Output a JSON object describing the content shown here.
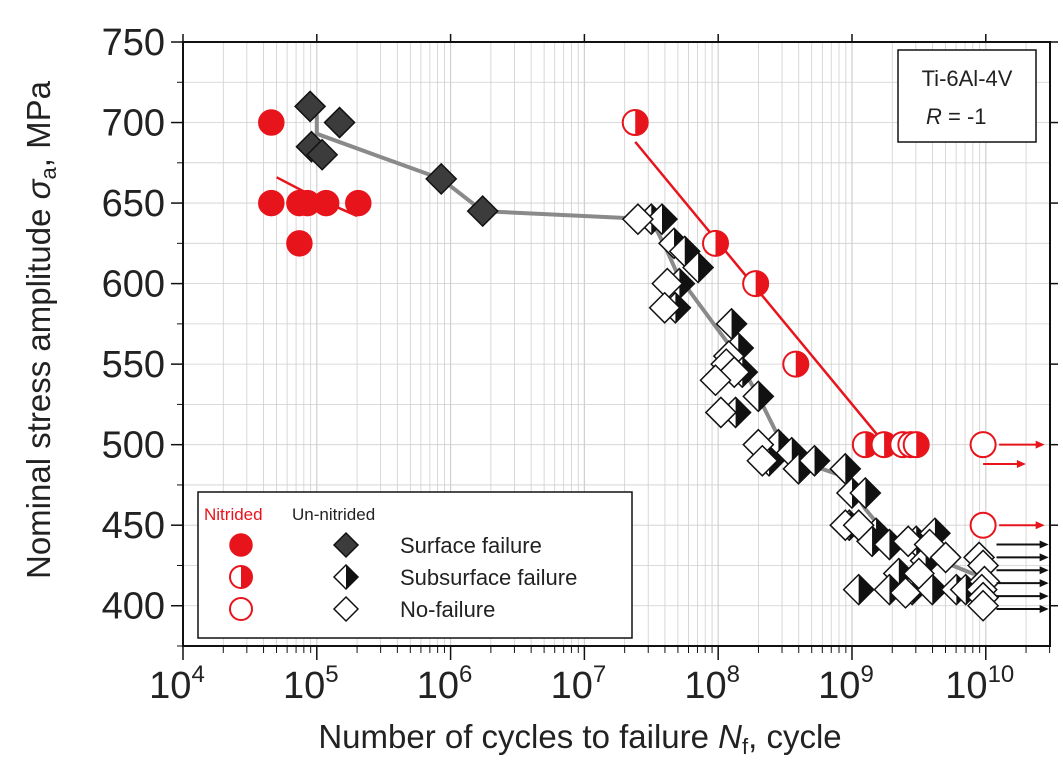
{
  "chart_data": {
    "type": "scatter",
    "title": "",
    "xlabel": "Number of cycles to failure",
    "xlabel_var": "N",
    "xlabel_sub": "f",
    "xlabel_suffix": ", cycle",
    "ylabel": "Nominal stress amplitude",
    "ylabel_var": "σ",
    "ylabel_sub": "a",
    "ylabel_suffix": ", MPa",
    "xscale": "log10",
    "xlim_exp": [
      4,
      10.48
    ],
    "ylim": [
      375,
      750
    ],
    "x_tick_base": "10",
    "x_tick_exponents": [
      "4",
      "5",
      "6",
      "7",
      "8",
      "9",
      "10"
    ],
    "y_ticks": [
      "400",
      "450",
      "500",
      "550",
      "600",
      "650",
      "700",
      "750"
    ],
    "grid": true,
    "annotation": {
      "line1": "Ti-6Al-4V",
      "line2_var": "R",
      "line2_rest": " = -1",
      "placement": "top-right"
    },
    "colors": {
      "nitrided": "#e8141c",
      "unnitrided": "#2b2b2b",
      "fit_nitrided": "#e8141c",
      "fit_unnitrided": "#8a8a8a",
      "grid": "#cfcfcf"
    },
    "legend": {
      "placement": "bottom-left",
      "header_nitrided": "Nitrided",
      "header_unnitrided": "Un-nitrided",
      "rows": [
        "Surface failure",
        "Subsurface failure",
        "No-failure"
      ]
    },
    "series": [
      {
        "name": "Nitrided - Surface failure",
        "group": "nitrided",
        "kind": "surface",
        "points": [
          [
            4.66,
            700
          ],
          [
            4.66,
            650
          ],
          [
            4.87,
            650
          ],
          [
            4.93,
            650
          ],
          [
            5.07,
            650
          ],
          [
            5.31,
            650
          ],
          [
            4.87,
            625
          ]
        ]
      },
      {
        "name": "Nitrided - Subsurface failure",
        "group": "nitrided",
        "kind": "subsurface",
        "points": [
          [
            7.38,
            700
          ],
          [
            7.98,
            625
          ],
          [
            8.28,
            600
          ],
          [
            8.58,
            550
          ],
          [
            9.1,
            500
          ],
          [
            9.24,
            500
          ],
          [
            9.38,
            500
          ],
          [
            9.44,
            500
          ],
          [
            9.48,
            500
          ]
        ]
      },
      {
        "name": "Nitrided - No-failure",
        "group": "nitrided",
        "kind": "nofailure",
        "runout": true,
        "points": [
          [
            9.98,
            500
          ],
          [
            9.98,
            450
          ]
        ]
      },
      {
        "name": "Un-nitrided - Surface failure",
        "group": "unnitrided",
        "kind": "surface",
        "points": [
          [
            4.95,
            710
          ],
          [
            4.96,
            685
          ],
          [
            5.04,
            680
          ],
          [
            5.17,
            700
          ],
          [
            5.93,
            665
          ],
          [
            6.24,
            645
          ]
        ]
      },
      {
        "name": "Un-nitrided - Subsurface failure",
        "group": "unnitrided",
        "kind": "subsurface",
        "points": [
          [
            7.5,
            640
          ],
          [
            7.58,
            640
          ],
          [
            7.67,
            625
          ],
          [
            7.75,
            620
          ],
          [
            7.85,
            610
          ],
          [
            7.71,
            600
          ],
          [
            7.68,
            585
          ],
          [
            8.1,
            575
          ],
          [
            8.15,
            560
          ],
          [
            8.18,
            545
          ],
          [
            8.3,
            530
          ],
          [
            8.13,
            520
          ],
          [
            8.45,
            500
          ],
          [
            8.55,
            495
          ],
          [
            8.38,
            490
          ],
          [
            8.6,
            485
          ],
          [
            8.72,
            490
          ],
          [
            8.95,
            485
          ],
          [
            9.0,
            470
          ],
          [
            9.1,
            470
          ],
          [
            9.18,
            445
          ],
          [
            8.98,
            450
          ],
          [
            9.15,
            440
          ],
          [
            9.28,
            438
          ],
          [
            9.48,
            440
          ],
          [
            9.62,
            445
          ],
          [
            9.55,
            428
          ],
          [
            9.35,
            420
          ],
          [
            9.05,
            410
          ],
          [
            9.28,
            410
          ],
          [
            9.45,
            410
          ],
          [
            9.6,
            410
          ],
          [
            9.78,
            410
          ],
          [
            9.85,
            410
          ]
        ]
      },
      {
        "name": "Un-nitrided - No-failure",
        "group": "unnitrided",
        "kind": "nofailure",
        "points": [
          [
            7.4,
            640
          ],
          [
            7.62,
            600
          ],
          [
            7.6,
            585
          ],
          [
            8.08,
            555
          ],
          [
            8.06,
            550
          ],
          [
            8.12,
            545
          ],
          [
            7.98,
            540
          ],
          [
            8.02,
            520
          ],
          [
            8.3,
            500
          ],
          [
            8.33,
            490
          ],
          [
            8.95,
            450
          ],
          [
            9.05,
            450
          ],
          [
            9.42,
            440
          ],
          [
            9.58,
            438
          ],
          [
            9.7,
            430
          ],
          [
            9.95,
            430
          ],
          [
            9.98,
            425
          ],
          [
            9.99,
            415
          ],
          [
            9.97,
            410
          ],
          [
            9.98,
            405
          ],
          [
            9.98,
            400
          ],
          [
            9.5,
            420
          ],
          [
            9.4,
            408
          ]
        ]
      }
    ],
    "fits": [
      {
        "name": "Nitrided surface fit A",
        "group": "nitrided",
        "points": [
          [
            4.7,
            666
          ],
          [
            5.0,
            653
          ],
          [
            5.3,
            642
          ]
        ]
      },
      {
        "name": "Nitrided subsurface fit",
        "group": "nitrided",
        "points": [
          [
            7.38,
            688
          ],
          [
            9.25,
            500
          ]
        ]
      },
      {
        "name": "Un-nitrided fit",
        "group": "unnitrided",
        "points": [
          [
            5.0,
            705
          ],
          [
            5.0,
            693
          ],
          [
            5.93,
            665
          ],
          [
            6.24,
            645
          ],
          [
            7.5,
            640
          ],
          [
            7.62,
            620
          ],
          [
            7.7,
            605
          ],
          [
            8.1,
            560
          ],
          [
            8.3,
            530
          ],
          [
            8.45,
            505
          ],
          [
            8.6,
            490
          ],
          [
            8.95,
            480
          ],
          [
            9.1,
            460
          ],
          [
            9.3,
            440
          ],
          [
            9.6,
            430
          ],
          [
            9.9,
            420
          ],
          [
            10.0,
            420
          ]
        ]
      }
    ],
    "runout_arrows": [
      {
        "group": "nitrided",
        "x_from": 10.1,
        "x_to": 10.44,
        "y": 500
      },
      {
        "group": "nitrided",
        "x_from": 9.98,
        "x_to": 10.3,
        "y": 488
      },
      {
        "group": "nitrided",
        "x_from": 10.1,
        "x_to": 10.44,
        "y": 450
      },
      {
        "group": "unnitrided",
        "x_from": 10.08,
        "x_to": 10.47,
        "y": 438
      },
      {
        "group": "unnitrided",
        "x_from": 10.08,
        "x_to": 10.47,
        "y": 430
      },
      {
        "group": "unnitrided",
        "x_from": 10.08,
        "x_to": 10.47,
        "y": 422
      },
      {
        "group": "unnitrided",
        "x_from": 10.08,
        "x_to": 10.47,
        "y": 414
      },
      {
        "group": "unnitrided",
        "x_from": 10.08,
        "x_to": 10.47,
        "y": 406
      },
      {
        "group": "unnitrided",
        "x_from": 10.08,
        "x_to": 10.47,
        "y": 398
      }
    ]
  }
}
